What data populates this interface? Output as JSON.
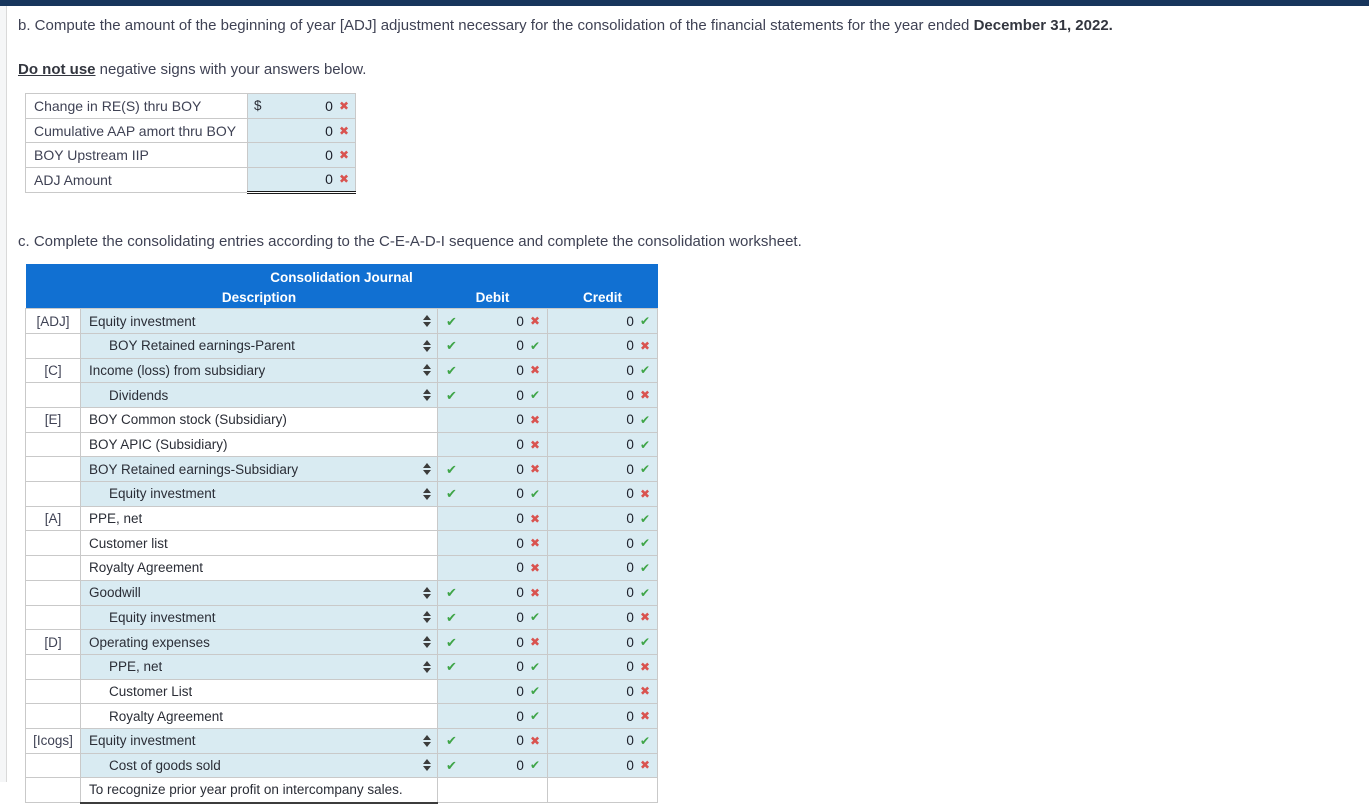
{
  "page": {
    "question_b": {
      "text": "b. Compute the amount of the beginning of year [ADJ] adjustment necessary for the consolidation of the financial statements for the year ended ",
      "date": "December 31, 2022."
    },
    "instruction": {
      "bold": "Do not use",
      "rest": " negative signs with your answers below."
    },
    "question_c": "c. Complete the consolidating entries according to the C-E-A-D-I sequence and complete the consolidation worksheet."
  },
  "adj_table": {
    "rows": [
      {
        "label": "Change in RE(S) thru BOY",
        "prefix": "$",
        "value": "0",
        "mark": "incorrect",
        "total": false
      },
      {
        "label": "Cumulative AAP amort thru BOY",
        "prefix": "",
        "value": "0",
        "mark": "incorrect",
        "total": false
      },
      {
        "label": "BOY Upstream IIP",
        "prefix": "",
        "value": "0",
        "mark": "incorrect",
        "total": false
      },
      {
        "label": "ADJ Amount",
        "prefix": "",
        "value": "0",
        "mark": "incorrect",
        "total": true
      }
    ]
  },
  "journal": {
    "title": "Consolidation Journal",
    "columns": {
      "description": "Description",
      "debit": "Debit",
      "credit": "Credit"
    },
    "rows": [
      {
        "label": "[ADJ]",
        "desc": "Equity investment",
        "indent": false,
        "dropdown": true,
        "footer": false,
        "debit": {
          "value": "0",
          "mark": "incorrect"
        },
        "credit": {
          "value": "0",
          "mark": "correct"
        }
      },
      {
        "label": "",
        "desc": "BOY Retained earnings-Parent",
        "indent": true,
        "dropdown": true,
        "footer": false,
        "debit": {
          "value": "0",
          "mark": "correct"
        },
        "credit": {
          "value": "0",
          "mark": "incorrect"
        }
      },
      {
        "label": "[C]",
        "desc": "Income (loss) from subsidiary",
        "indent": false,
        "dropdown": true,
        "footer": false,
        "debit": {
          "value": "0",
          "mark": "incorrect"
        },
        "credit": {
          "value": "0",
          "mark": "correct"
        }
      },
      {
        "label": "",
        "desc": "Dividends",
        "indent": true,
        "dropdown": true,
        "footer": false,
        "debit": {
          "value": "0",
          "mark": "correct"
        },
        "credit": {
          "value": "0",
          "mark": "incorrect"
        }
      },
      {
        "label": "[E]",
        "desc": "BOY Common stock (Subsidiary)",
        "indent": false,
        "dropdown": false,
        "footer": false,
        "debit": {
          "value": "0",
          "mark": "incorrect"
        },
        "credit": {
          "value": "0",
          "mark": "correct"
        }
      },
      {
        "label": "",
        "desc": "BOY APIC (Subsidiary)",
        "indent": false,
        "dropdown": false,
        "footer": false,
        "debit": {
          "value": "0",
          "mark": "incorrect"
        },
        "credit": {
          "value": "0",
          "mark": "correct"
        }
      },
      {
        "label": "",
        "desc": "BOY Retained earnings-Subsidiary",
        "indent": false,
        "dropdown": true,
        "footer": false,
        "debit": {
          "value": "0",
          "mark": "incorrect"
        },
        "credit": {
          "value": "0",
          "mark": "correct"
        }
      },
      {
        "label": "",
        "desc": "Equity investment",
        "indent": true,
        "dropdown": true,
        "footer": false,
        "debit": {
          "value": "0",
          "mark": "correct"
        },
        "credit": {
          "value": "0",
          "mark": "incorrect"
        }
      },
      {
        "label": "[A]",
        "desc": "PPE, net",
        "indent": false,
        "dropdown": false,
        "footer": false,
        "debit": {
          "value": "0",
          "mark": "incorrect"
        },
        "credit": {
          "value": "0",
          "mark": "correct"
        }
      },
      {
        "label": "",
        "desc": "Customer list",
        "indent": false,
        "dropdown": false,
        "footer": false,
        "debit": {
          "value": "0",
          "mark": "incorrect"
        },
        "credit": {
          "value": "0",
          "mark": "correct"
        }
      },
      {
        "label": "",
        "desc": "Royalty Agreement",
        "indent": false,
        "dropdown": false,
        "footer": false,
        "debit": {
          "value": "0",
          "mark": "incorrect"
        },
        "credit": {
          "value": "0",
          "mark": "correct"
        }
      },
      {
        "label": "",
        "desc": "Goodwill",
        "indent": false,
        "dropdown": true,
        "footer": false,
        "debit": {
          "value": "0",
          "mark": "incorrect"
        },
        "credit": {
          "value": "0",
          "mark": "correct"
        }
      },
      {
        "label": "",
        "desc": "Equity investment",
        "indent": true,
        "dropdown": true,
        "footer": false,
        "debit": {
          "value": "0",
          "mark": "correct"
        },
        "credit": {
          "value": "0",
          "mark": "incorrect"
        }
      },
      {
        "label": "[D]",
        "desc": "Operating expenses",
        "indent": false,
        "dropdown": true,
        "footer": false,
        "debit": {
          "value": "0",
          "mark": "incorrect"
        },
        "credit": {
          "value": "0",
          "mark": "correct"
        }
      },
      {
        "label": "",
        "desc": "PPE, net",
        "indent": true,
        "dropdown": true,
        "footer": false,
        "debit": {
          "value": "0",
          "mark": "correct"
        },
        "credit": {
          "value": "0",
          "mark": "incorrect"
        }
      },
      {
        "label": "",
        "desc": "Customer List",
        "indent": true,
        "dropdown": false,
        "footer": false,
        "debit": {
          "value": "0",
          "mark": "correct"
        },
        "credit": {
          "value": "0",
          "mark": "incorrect"
        }
      },
      {
        "label": "",
        "desc": "Royalty Agreement",
        "indent": true,
        "dropdown": false,
        "footer": false,
        "debit": {
          "value": "0",
          "mark": "correct"
        },
        "credit": {
          "value": "0",
          "mark": "incorrect"
        }
      },
      {
        "label": "[Icogs]",
        "desc": "Equity investment",
        "indent": false,
        "dropdown": true,
        "footer": false,
        "debit": {
          "value": "0",
          "mark": "incorrect"
        },
        "credit": {
          "value": "0",
          "mark": "correct"
        }
      },
      {
        "label": "",
        "desc": "Cost of goods sold",
        "indent": true,
        "dropdown": true,
        "footer": false,
        "debit": {
          "value": "0",
          "mark": "correct"
        },
        "credit": {
          "value": "0",
          "mark": "incorrect"
        }
      },
      {
        "label": "",
        "desc": "To recognize prior year profit on intercompany sales.",
        "indent": false,
        "dropdown": false,
        "footer": true,
        "debit": {
          "value": "",
          "mark": ""
        },
        "credit": {
          "value": "",
          "mark": ""
        }
      }
    ]
  },
  "icons": {
    "correct": "✔",
    "incorrect": "✖",
    "dropdown": "select-arrows-icon"
  },
  "colors": {
    "correct": "#3fa548",
    "incorrect": "#d9534f",
    "header_bg": "#1170d2",
    "cell_editable_bg": "#d9ebf2",
    "topbar": "#17355c"
  }
}
